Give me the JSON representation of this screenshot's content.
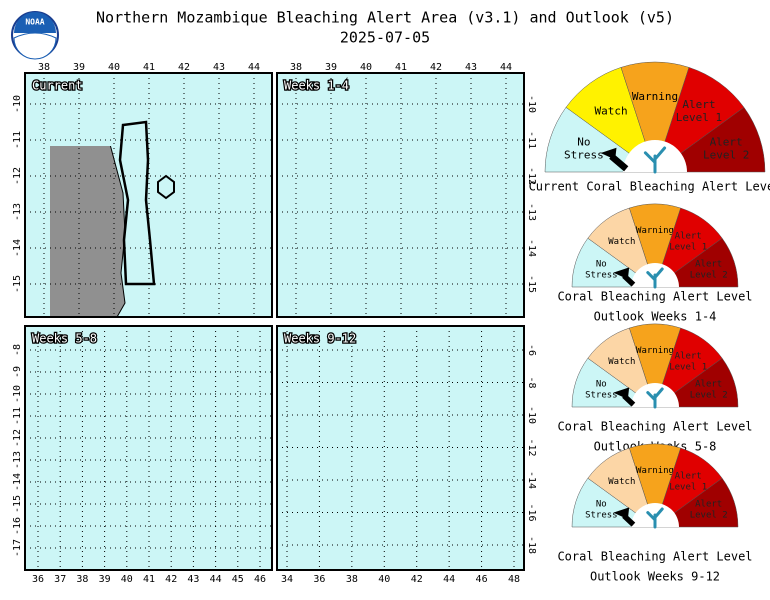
{
  "header": {
    "logo": "NOAA",
    "title": "Northern Mozambique Bleaching Alert Area (v3.1) and Outlook (v5)",
    "date": "2025-07-05"
  },
  "maps": [
    {
      "label": "Current",
      "x_ticks": [
        "38",
        "39",
        "40",
        "41",
        "42",
        "43",
        "44"
      ],
      "y_ticks": [
        "-10",
        "-11",
        "-12",
        "-13",
        "-14",
        "-15"
      ]
    },
    {
      "label": "Weeks 1-4",
      "x_ticks": [
        "38",
        "39",
        "40",
        "41",
        "42",
        "43",
        "44"
      ],
      "y_ticks": [
        "-10",
        "-11",
        "-12",
        "-13",
        "-14",
        "-15"
      ]
    },
    {
      "label": "Weeks 5-8",
      "x_ticks": [
        "36",
        "37",
        "38",
        "39",
        "40",
        "41",
        "42",
        "43",
        "44",
        "45",
        "46"
      ],
      "y_ticks": [
        "-8",
        "-9",
        "-10",
        "-11",
        "-12",
        "-13",
        "-14",
        "-15",
        "-16",
        "-17"
      ]
    },
    {
      "label": "Weeks 9-12",
      "x_ticks": [
        "34",
        "36",
        "38",
        "40",
        "42",
        "44",
        "46",
        "48"
      ],
      "y_ticks": [
        "-6",
        "-8",
        "-10",
        "-12",
        "-14",
        "-16",
        "-18"
      ]
    }
  ],
  "gauges": [
    {
      "levels": [
        [
          "No",
          "Stress"
        ],
        [
          "Watch"
        ],
        [
          "Warning"
        ],
        [
          "Alert",
          "Level 1"
        ],
        [
          "Alert",
          "Level 2"
        ]
      ],
      "caption": [
        "Current Coral Bleaching Alert Level"
      ]
    },
    {
      "levels": [
        [
          "No",
          "Stress"
        ],
        [
          "Watch"
        ],
        [
          "Warning"
        ],
        [
          "Alert",
          "Level 1"
        ],
        [
          "Alert",
          "Level 2"
        ]
      ],
      "caption": [
        "Coral Bleaching Alert Level",
        "Outlook Weeks 1-4"
      ]
    },
    {
      "levels": [
        [
          "No",
          "Stress"
        ],
        [
          "Watch"
        ],
        [
          "Warning"
        ],
        [
          "Alert",
          "Level 1"
        ],
        [
          "Alert",
          "Level 2"
        ]
      ],
      "caption": [
        "Coral Bleaching Alert Level",
        "Outlook Weeks 5-8"
      ]
    },
    {
      "levels": [
        [
          "No",
          "Stress"
        ],
        [
          "Watch"
        ],
        [
          "Warning"
        ],
        [
          "Alert",
          "Level 1"
        ],
        [
          "Alert",
          "Level 2"
        ]
      ],
      "caption": [
        "Coral Bleaching Alert Level",
        "Outlook Weeks 9-12"
      ]
    }
  ]
}
